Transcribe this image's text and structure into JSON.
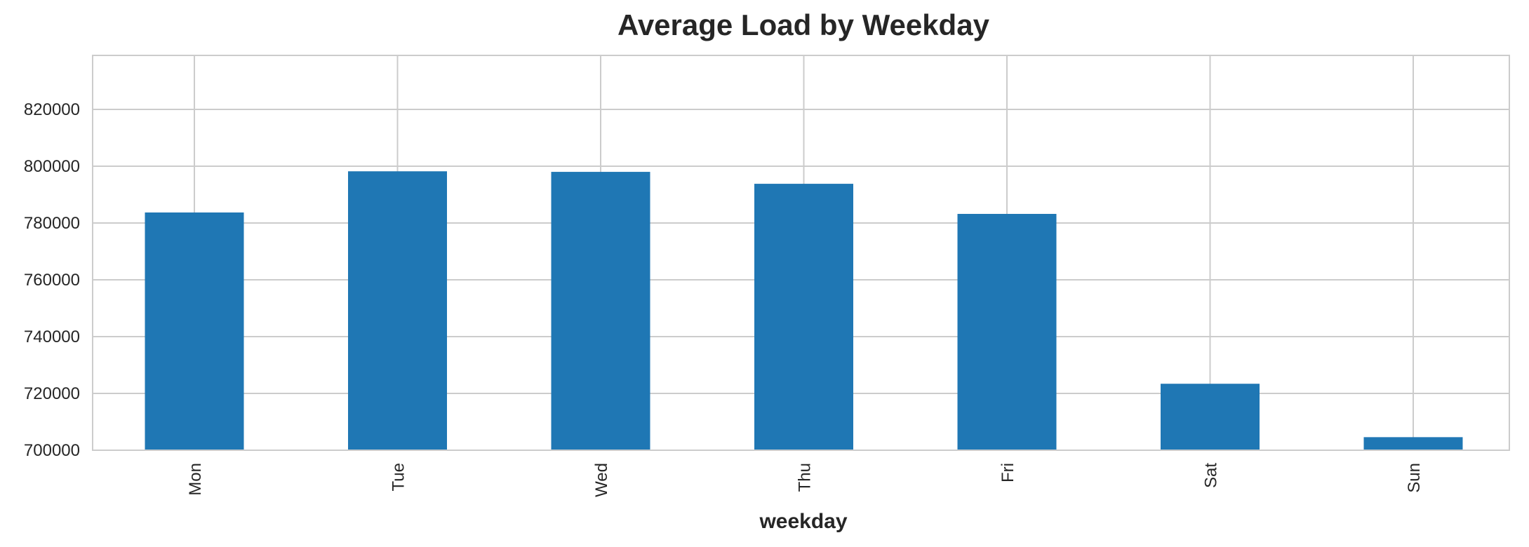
{
  "chart_data": {
    "type": "bar",
    "title": "Average Load by Weekday",
    "xlabel": "weekday",
    "ylabel": "",
    "categories": [
      "Mon",
      "Tue",
      "Wed",
      "Thu",
      "Fri",
      "Sat",
      "Sun"
    ],
    "values": [
      783700,
      798200,
      798000,
      793800,
      783200,
      723400,
      704600
    ],
    "ylim": [
      700000,
      839000
    ],
    "yticks": [
      "700000",
      "720000",
      "740000",
      "760000",
      "780000",
      "800000",
      "820000"
    ],
    "grid": true,
    "bar_color": "#1f77b4",
    "grid_color": "#cccccc"
  }
}
